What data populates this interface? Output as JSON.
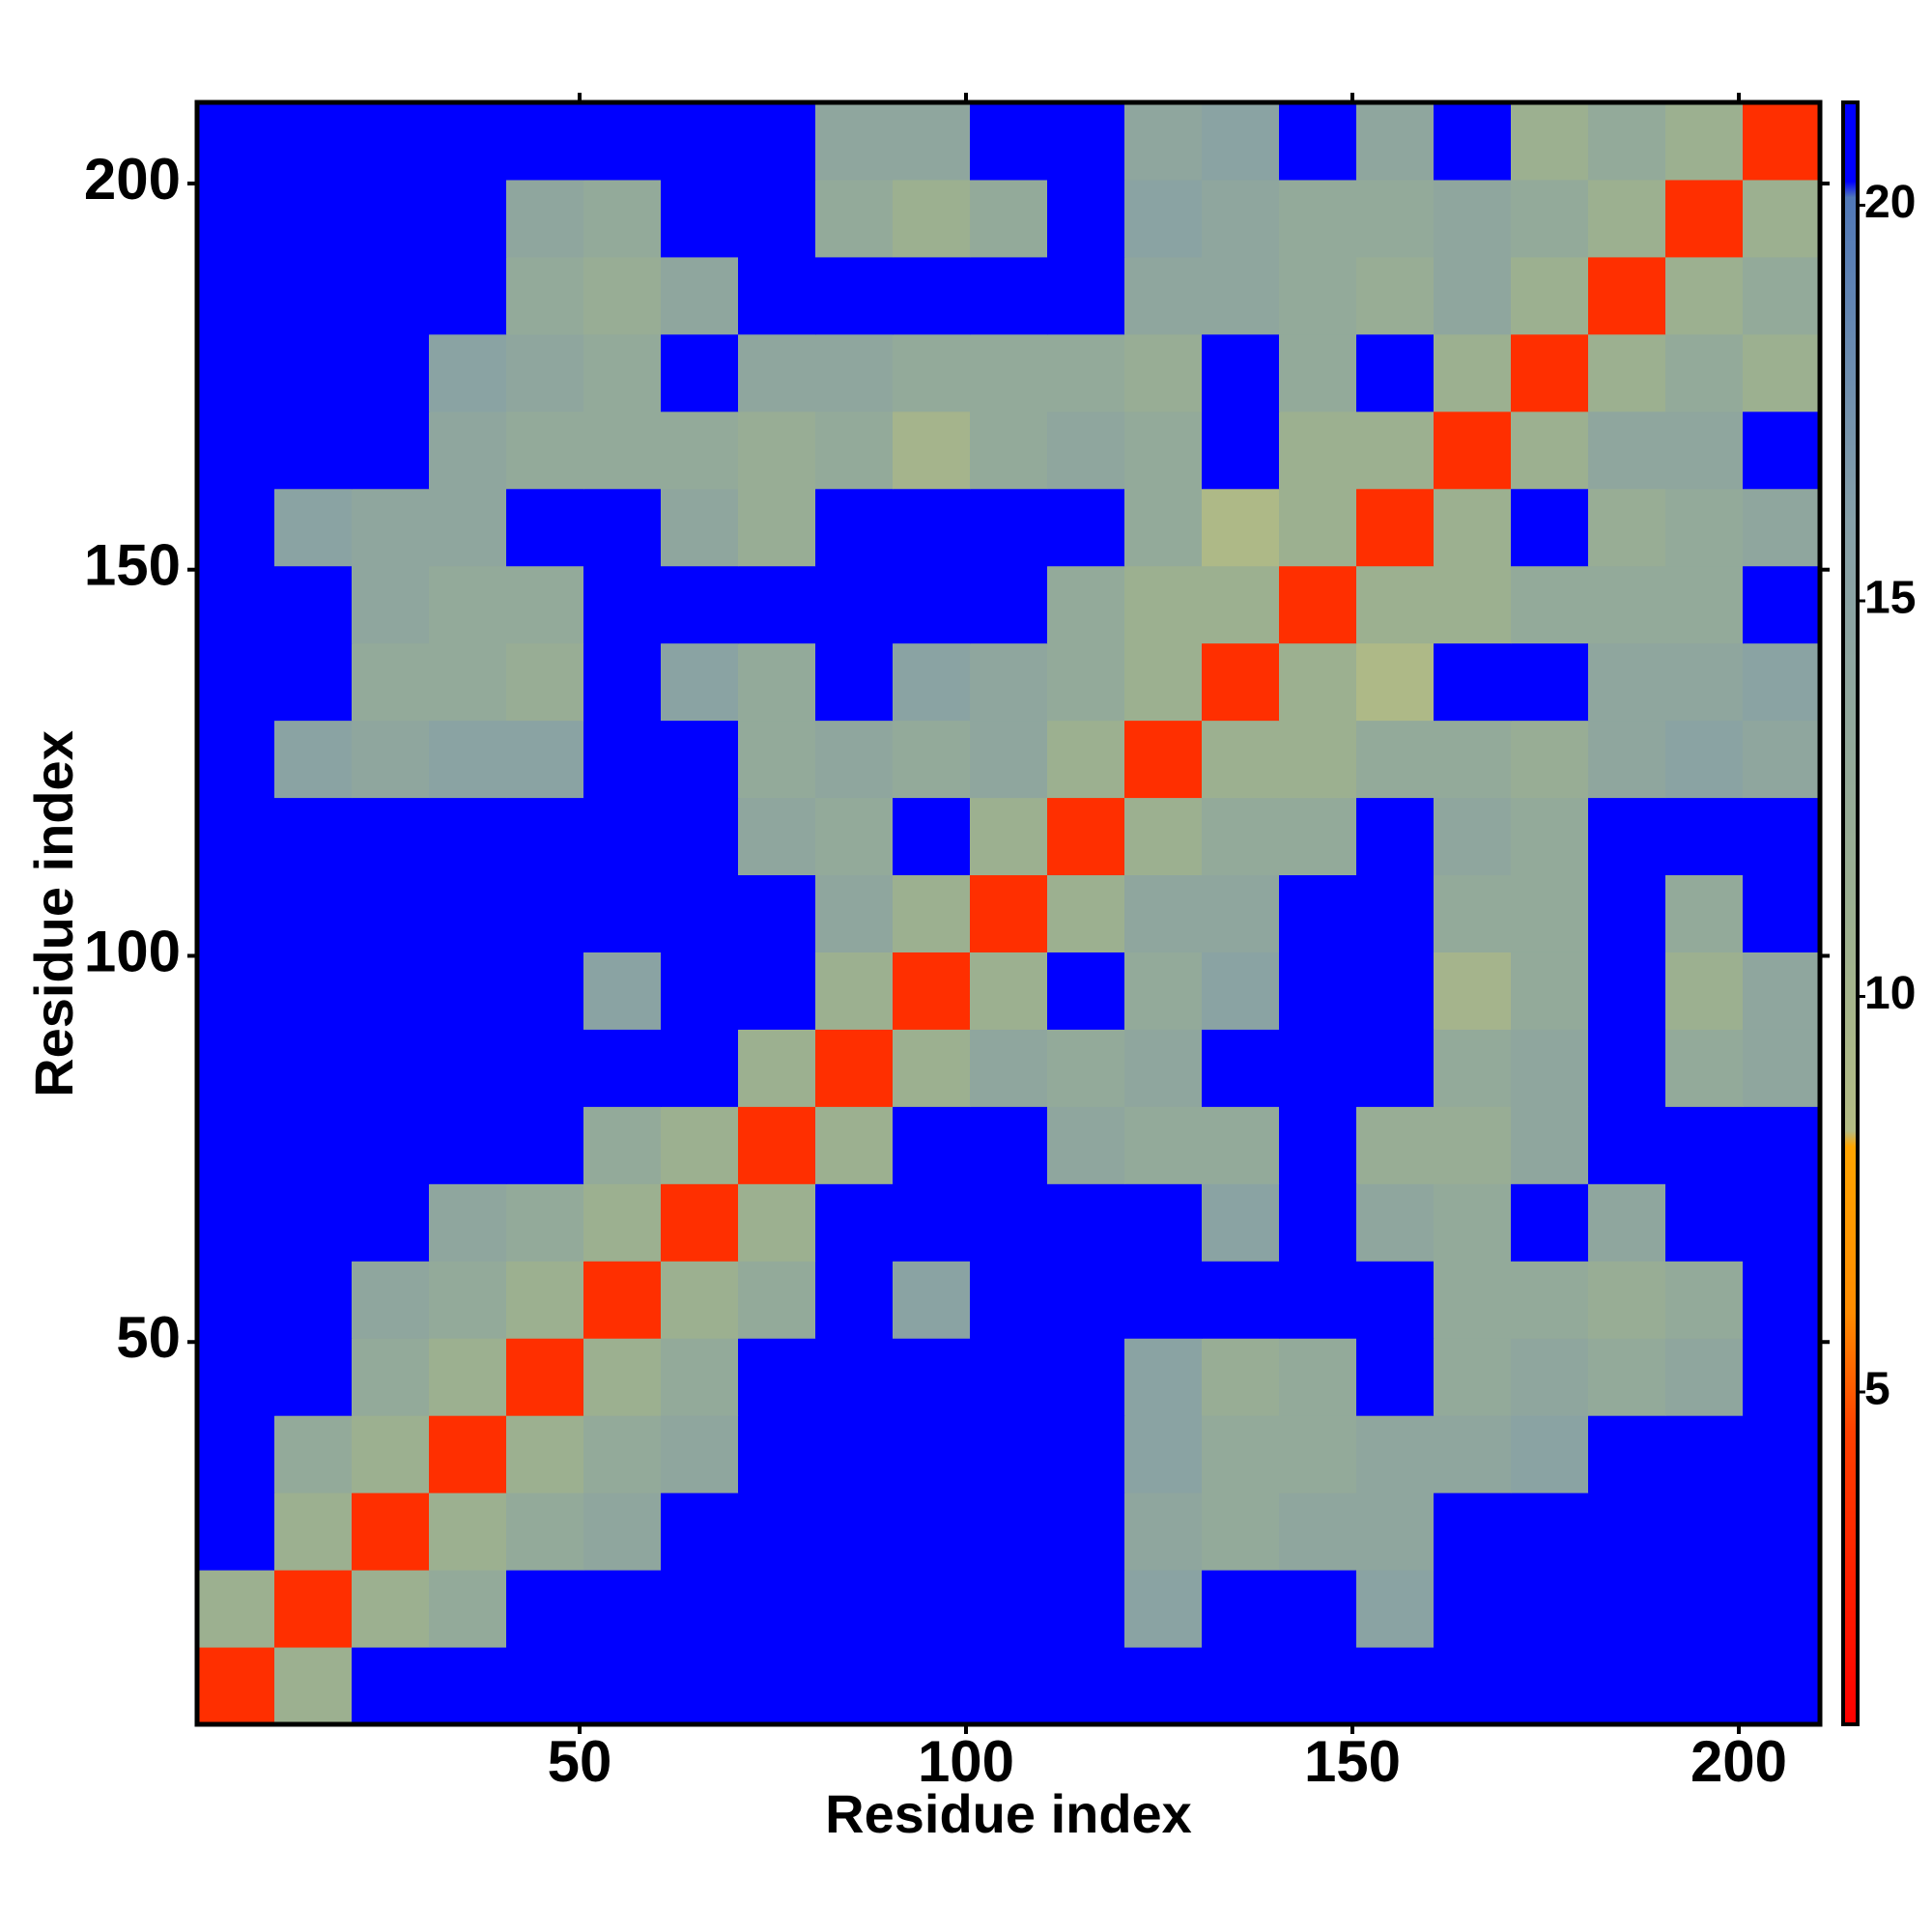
{
  "chart_data": {
    "type": "heatmap",
    "x_label": "Residue index",
    "y_label": "Residue index",
    "xlim": [
      0.5,
      210.5
    ],
    "ylim": [
      0.5,
      210.5
    ],
    "xticks": [
      50,
      100,
      150,
      200
    ],
    "yticks": [
      50,
      100,
      150,
      200
    ],
    "x_edges": [
      0.5,
      10.5,
      20.5,
      30.5,
      40.5,
      50.5,
      60.5,
      70.5,
      80.5,
      90.5,
      100.5,
      110.5,
      120.5,
      130.5,
      140.5,
      150.5,
      160.5,
      170.5,
      180.5,
      190.5,
      200.5,
      210.5
    ],
    "y_edges": [
      0.5,
      10.5,
      20.5,
      30.5,
      40.5,
      50.5,
      60.5,
      70.5,
      80.5,
      90.5,
      100.5,
      110.5,
      120.5,
      130.5,
      140.5,
      150.5,
      160.5,
      170.5,
      180.5,
      190.5,
      200.5,
      210.5
    ],
    "z": [
      [
        3.5,
        11,
        21,
        21,
        21,
        21,
        21,
        21,
        21,
        21,
        21,
        21,
        21,
        21,
        21,
        21,
        21,
        21,
        21,
        21,
        21
      ],
      [
        11,
        3.5,
        11,
        13,
        21,
        21,
        21,
        21,
        21,
        21,
        21,
        21,
        15,
        21,
        21,
        15,
        21,
        21,
        21,
        21,
        21
      ],
      [
        21,
        11,
        3.5,
        11,
        13,
        14,
        21,
        21,
        21,
        21,
        21,
        21,
        14,
        13,
        14,
        14,
        21,
        21,
        21,
        21,
        21
      ],
      [
        21,
        13,
        11,
        3.5,
        11,
        13,
        14,
        21,
        21,
        21,
        21,
        21,
        15,
        13,
        13,
        14,
        14,
        15,
        21,
        21,
        21
      ],
      [
        21,
        21,
        13,
        11,
        3.5,
        11,
        13,
        21,
        21,
        21,
        21,
        21,
        15,
        12,
        13,
        21,
        13,
        14,
        13,
        14,
        21
      ],
      [
        21,
        21,
        14,
        13,
        11,
        3.5,
        11,
        13,
        21,
        15,
        21,
        21,
        21,
        21,
        21,
        21,
        13,
        13,
        12,
        13,
        21
      ],
      [
        21,
        21,
        21,
        14,
        13,
        11,
        3.5,
        11,
        21,
        21,
        21,
        21,
        21,
        15,
        21,
        14,
        13,
        21,
        14,
        21,
        21
      ],
      [
        21,
        21,
        21,
        21,
        21,
        13,
        11,
        3.5,
        11,
        21,
        21,
        14,
        13,
        13,
        21,
        12,
        12,
        14,
        21,
        21,
        21
      ],
      [
        21,
        21,
        21,
        21,
        21,
        21,
        21,
        11,
        3.5,
        11,
        14,
        13,
        14,
        21,
        21,
        21,
        13,
        14,
        21,
        13,
        14
      ],
      [
        21,
        21,
        21,
        21,
        21,
        15,
        21,
        21,
        11,
        3.5,
        11,
        21,
        13,
        15,
        21,
        21,
        10,
        13,
        21,
        11,
        14
      ],
      [
        21,
        21,
        21,
        21,
        21,
        21,
        21,
        21,
        14,
        11,
        3.5,
        11,
        14,
        14,
        21,
        21,
        13,
        13,
        21,
        13,
        21
      ],
      [
        21,
        21,
        21,
        21,
        21,
        21,
        21,
        14,
        13,
        21,
        11,
        3.5,
        11,
        13,
        13,
        21,
        14,
        13,
        21,
        21,
        21
      ],
      [
        21,
        15,
        14,
        15,
        15,
        21,
        21,
        13,
        14,
        13,
        14,
        11,
        3.5,
        11,
        11,
        13,
        13,
        12,
        14,
        15,
        14
      ],
      [
        21,
        21,
        13,
        13,
        12,
        21,
        15,
        13,
        21,
        15,
        14,
        13,
        11,
        3.5,
        11,
        9,
        21,
        21,
        14,
        14,
        15
      ],
      [
        21,
        21,
        14,
        13,
        13,
        21,
        21,
        21,
        21,
        21,
        21,
        13,
        11,
        11,
        3.5,
        11,
        11,
        13,
        13,
        13,
        21
      ],
      [
        21,
        15,
        14,
        14,
        21,
        21,
        14,
        12,
        21,
        21,
        21,
        21,
        13,
        9,
        11,
        3.5,
        11,
        21,
        12,
        13,
        14
      ],
      [
        21,
        21,
        21,
        14,
        13,
        13,
        13,
        12,
        13,
        10,
        13,
        14,
        13,
        21,
        11,
        11,
        3.5,
        11,
        14,
        14,
        21
      ],
      [
        21,
        21,
        21,
        15,
        14,
        13,
        21,
        14,
        14,
        13,
        13,
        13,
        12,
        21,
        13,
        21,
        11,
        3.5,
        11,
        13,
        11
      ],
      [
        21,
        21,
        21,
        21,
        13,
        12,
        14,
        21,
        21,
        21,
        21,
        21,
        14,
        14,
        13,
        12,
        14,
        11,
        3.5,
        11,
        13
      ],
      [
        21,
        21,
        21,
        21,
        14,
        13,
        21,
        21,
        13,
        11,
        13,
        21,
        15,
        14,
        13,
        13,
        14,
        13,
        11,
        3.5,
        11
      ],
      [
        21,
        21,
        21,
        21,
        21,
        21,
        21,
        21,
        14,
        14,
        21,
        21,
        14,
        15,
        21,
        14,
        21,
        11,
        13,
        11,
        3.5
      ]
    ],
    "clim": [
      0.8,
      21.3
    ],
    "colorbar_ticks": [
      5,
      10,
      15,
      20
    ],
    "colorscale": [
      [
        0.8,
        "#ff0000"
      ],
      [
        4.5,
        "#ff4000"
      ],
      [
        6,
        "#ff8c00"
      ],
      [
        8.1,
        "#ffa500"
      ],
      [
        8.3,
        "#b4bc84"
      ],
      [
        11,
        "#9cb090"
      ],
      [
        16,
        "#86a0a8"
      ],
      [
        20.1,
        "#5078b8"
      ],
      [
        20.3,
        "#0000ff"
      ],
      [
        21.3,
        "#0000ff"
      ]
    ]
  }
}
